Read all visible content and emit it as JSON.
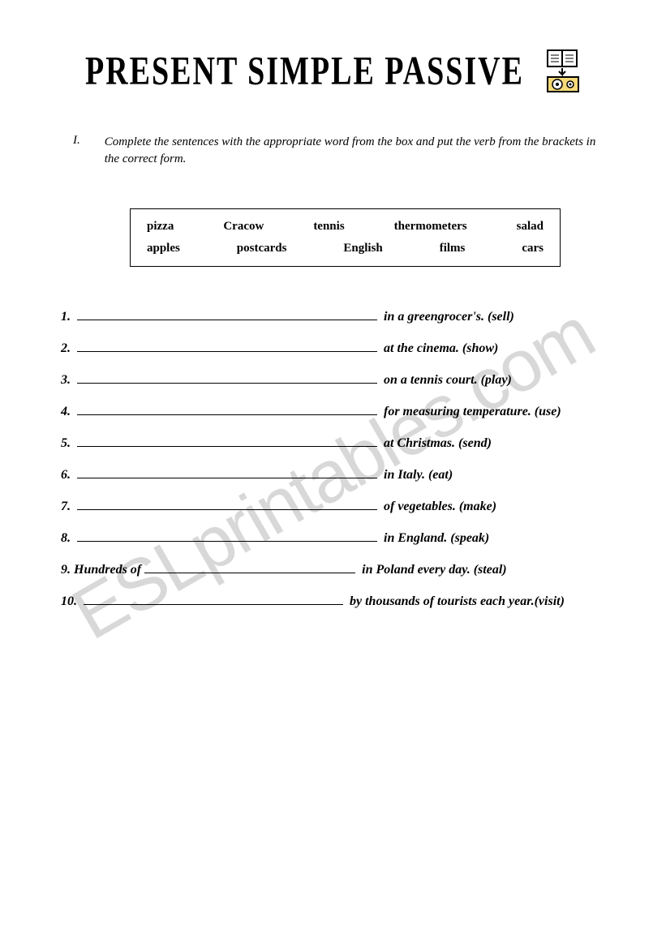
{
  "watermark": "ESLprintables.com",
  "title": "PRESENT   SIMPLE   PASSIVE",
  "instruction": {
    "number": "I.",
    "text": "Complete the sentences with the appropriate word from the box and put the verb from the brackets in the correct form."
  },
  "word_box": {
    "row1": [
      "pizza",
      "Cracow",
      "tennis",
      "thermometers",
      "salad"
    ],
    "row2": [
      "apples",
      "postcards",
      "English",
      "films",
      "cars"
    ]
  },
  "sentences": [
    {
      "num": "1.",
      "prefix": "",
      "blank_width": 370,
      "suffix": "in a greengrocer's. (sell)"
    },
    {
      "num": "2.",
      "prefix": "",
      "blank_width": 370,
      "suffix": "at the cinema. (show)"
    },
    {
      "num": "3.",
      "prefix": "",
      "blank_width": 370,
      "suffix": "on a tennis court. (play)"
    },
    {
      "num": "4.",
      "prefix": "",
      "blank_width": 370,
      "suffix": "for measuring temperature. (use)"
    },
    {
      "num": "5.",
      "prefix": "",
      "blank_width": 370,
      "suffix": "at Christmas. (send)"
    },
    {
      "num": "6.",
      "prefix": "",
      "blank_width": 370,
      "suffix": "in Italy. (eat)"
    },
    {
      "num": "7.",
      "prefix": "",
      "blank_width": 370,
      "suffix": "of vegetables. (make)"
    },
    {
      "num": "8.",
      "prefix": "",
      "blank_width": 370,
      "suffix": "in England. (speak)"
    },
    {
      "num": "9.",
      "prefix": "Hundreds of ",
      "blank_width": 260,
      "suffix": "in Poland every day. (steal)"
    },
    {
      "num": "10.",
      "prefix": "",
      "blank_width": 320,
      "suffix": "by thousands of tourists each year.(visit)"
    }
  ],
  "colors": {
    "background": "#ffffff",
    "text": "#000000",
    "watermark": "#d8d8d8",
    "icon_yellow": "#f5d978",
    "icon_outline": "#000000"
  }
}
